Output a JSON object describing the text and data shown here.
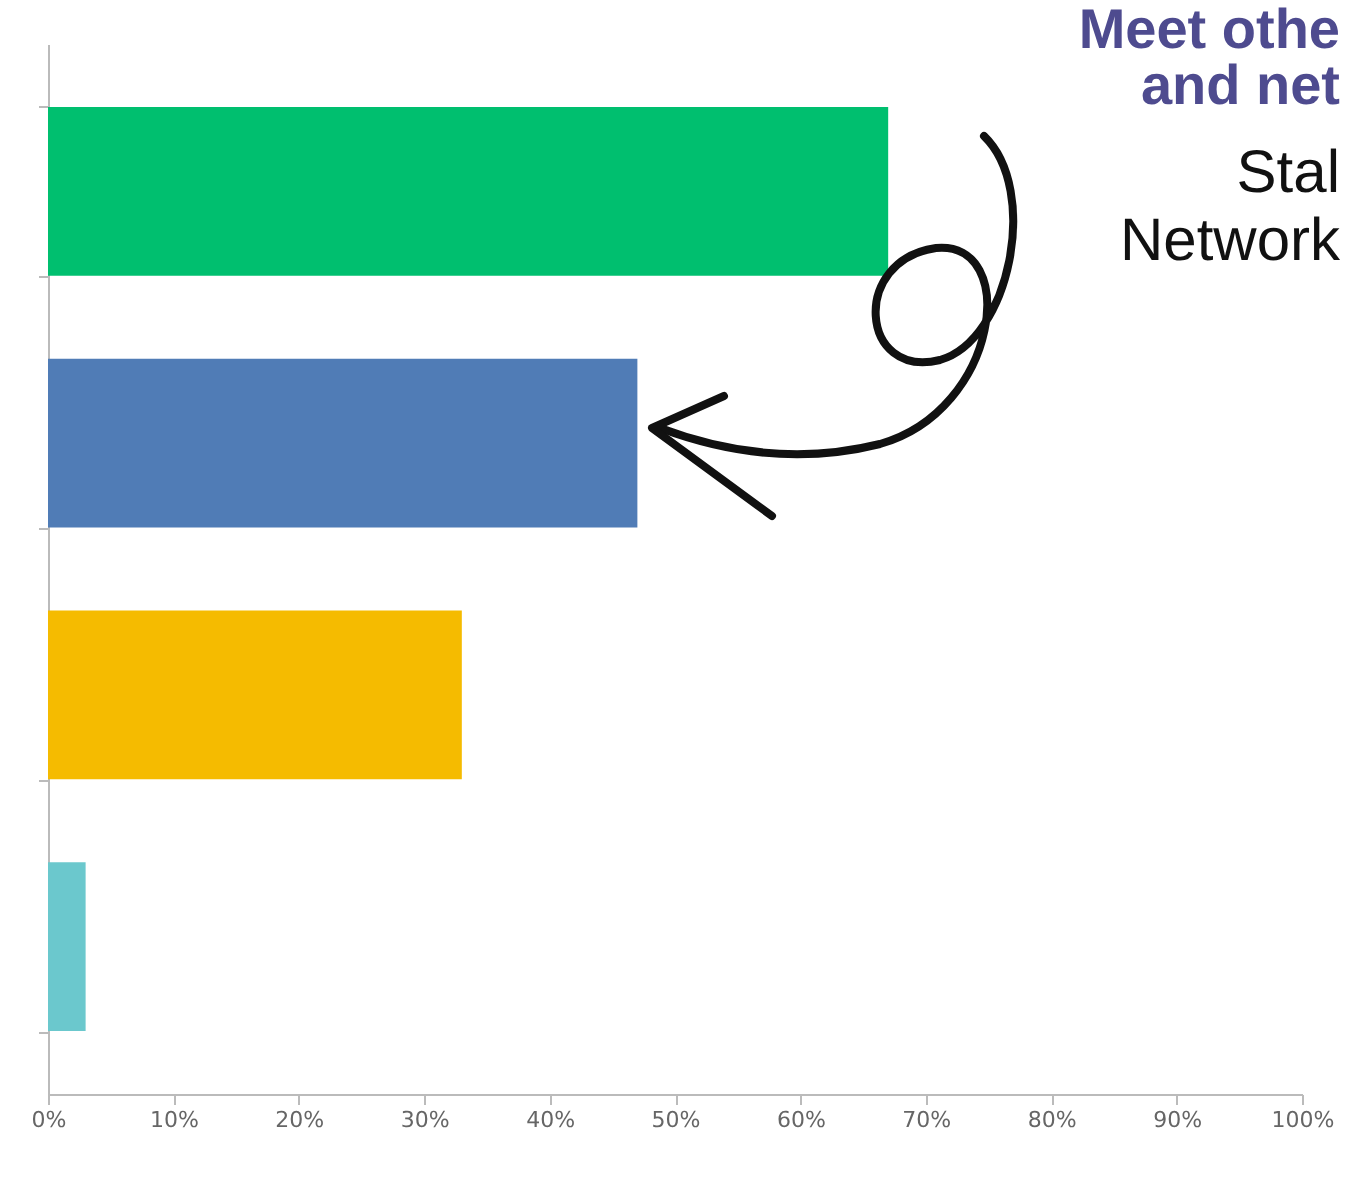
{
  "chart_data": {
    "type": "bar",
    "orientation": "horizontal",
    "categories": [
      null,
      null,
      null,
      null
    ],
    "values": [
      67,
      47,
      33,
      3
    ],
    "colors": [
      "#00bf6f",
      "#507cb6",
      "#f5bb00",
      "#6bc8cd"
    ],
    "xlim": [
      0,
      100
    ],
    "xticks": [
      {
        "value": 0,
        "label": "0%"
      },
      {
        "value": 10,
        "label": "10%"
      },
      {
        "value": 20,
        "label": "20%"
      },
      {
        "value": 30,
        "label": "30%"
      },
      {
        "value": 40,
        "label": "40%"
      },
      {
        "value": 50,
        "label": "50%"
      },
      {
        "value": 60,
        "label": "60%"
      },
      {
        "value": 70,
        "label": "70%"
      },
      {
        "value": 80,
        "label": "80%"
      },
      {
        "value": 90,
        "label": "90%"
      },
      {
        "value": 100,
        "label": "100%"
      }
    ],
    "grid": false,
    "legend": false,
    "annotations": [
      "Meet othe",
      "and net",
      "Stal",
      "Network"
    ]
  }
}
